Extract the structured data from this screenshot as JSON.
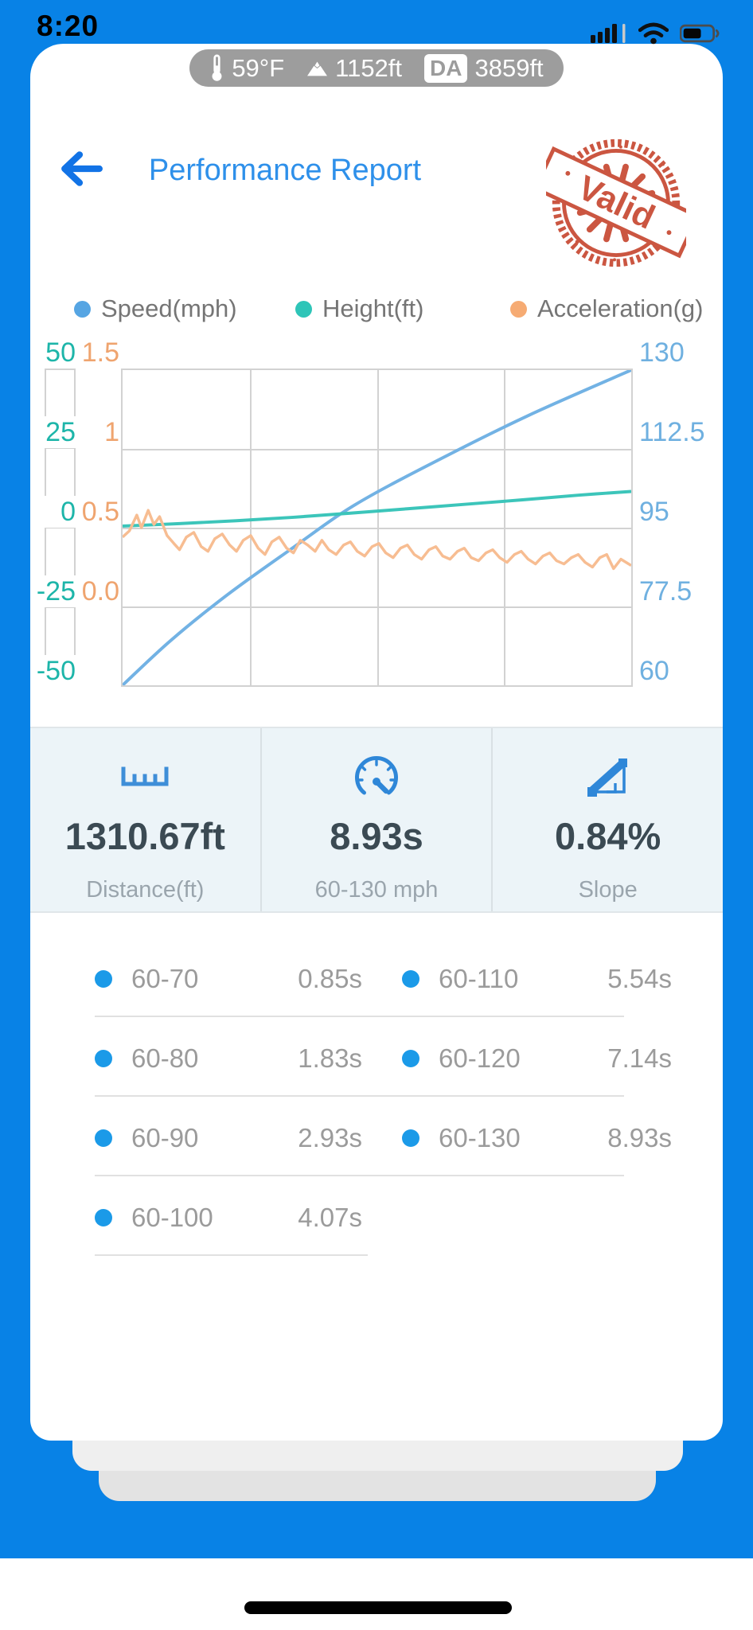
{
  "status_bar": {
    "time": "8:20"
  },
  "env_pill": {
    "temperature": "59°F",
    "altitude": "1152ft",
    "da_label": "DA",
    "density_altitude": "3859ft"
  },
  "header": {
    "back_icon": "arrow-left",
    "title": "Performance Report",
    "stamp_text": "Valid",
    "stamp_color": "#c84a33"
  },
  "legend": [
    {
      "label": "Speed(mph)",
      "color": "#56a5e3"
    },
    {
      "label": "Height(ft)",
      "color": "#2ec5b8"
    },
    {
      "label": "Acceleration(g)",
      "color": "#f6ab73"
    }
  ],
  "chart_data": {
    "type": "line",
    "x": {
      "label": "time",
      "unit": "s",
      "range": [
        0,
        8.93
      ],
      "ticks_visible": false
    },
    "grid": {
      "columns": 4,
      "rows": 4,
      "color": "#d2d2d2"
    },
    "axes": [
      {
        "id": "height",
        "side": "far-left",
        "color": "#1db5a9",
        "range": [
          -50,
          50
        ],
        "ticks": [
          "50",
          "25",
          "0",
          "-25",
          "-50"
        ]
      },
      {
        "id": "acceleration",
        "side": "left",
        "color": "#efa46f",
        "range": [
          -0.5,
          1.5
        ],
        "ticks": [
          "1.5",
          "1",
          "0.5",
          "0.0"
        ]
      },
      {
        "id": "speed",
        "side": "right",
        "color": "#6fb0e0",
        "range": [
          60,
          130
        ],
        "ticks": [
          "130",
          "112.5",
          "95",
          "77.5",
          "60"
        ]
      }
    ],
    "series": [
      {
        "name": "Speed(mph)",
        "axis": "speed",
        "color": "#72b2e4",
        "width": 4,
        "smooth": true,
        "points": [
          [
            0,
            60
          ],
          [
            0.85,
            70
          ],
          [
            1.83,
            80
          ],
          [
            2.93,
            90
          ],
          [
            4.07,
            100
          ],
          [
            5.54,
            110
          ],
          [
            7.14,
            120
          ],
          [
            8.93,
            130
          ]
        ]
      },
      {
        "name": "Height(ft)",
        "axis": "height",
        "color": "#3cc5ba",
        "width": 4,
        "smooth": true,
        "points": [
          [
            0,
            0.5
          ],
          [
            1,
            1.3
          ],
          [
            2,
            2.2
          ],
          [
            3,
            3.3
          ],
          [
            4,
            4.6
          ],
          [
            5,
            6.0
          ],
          [
            6,
            7.4
          ],
          [
            7,
            8.8
          ],
          [
            8,
            10.3
          ],
          [
            8.93,
            11.5
          ]
        ]
      },
      {
        "name": "Acceleration(g)",
        "axis": "acceleration",
        "color": "#f7bd92",
        "width": 3.5,
        "smooth": false,
        "points": [
          [
            0,
            0.44
          ],
          [
            0.12,
            0.48
          ],
          [
            0.25,
            0.58
          ],
          [
            0.33,
            0.5
          ],
          [
            0.45,
            0.61
          ],
          [
            0.55,
            0.52
          ],
          [
            0.65,
            0.57
          ],
          [
            0.78,
            0.45
          ],
          [
            0.9,
            0.4
          ],
          [
            1.0,
            0.36
          ],
          [
            1.12,
            0.44
          ],
          [
            1.25,
            0.47
          ],
          [
            1.38,
            0.38
          ],
          [
            1.5,
            0.35
          ],
          [
            1.62,
            0.43
          ],
          [
            1.75,
            0.46
          ],
          [
            1.88,
            0.39
          ],
          [
            2.0,
            0.35
          ],
          [
            2.12,
            0.42
          ],
          [
            2.25,
            0.45
          ],
          [
            2.38,
            0.37
          ],
          [
            2.5,
            0.33
          ],
          [
            2.62,
            0.41
          ],
          [
            2.75,
            0.44
          ],
          [
            2.88,
            0.37
          ],
          [
            3.0,
            0.34
          ],
          [
            3.12,
            0.42
          ],
          [
            3.25,
            0.39
          ],
          [
            3.38,
            0.35
          ],
          [
            3.5,
            0.42
          ],
          [
            3.62,
            0.36
          ],
          [
            3.75,
            0.33
          ],
          [
            3.88,
            0.39
          ],
          [
            4.0,
            0.41
          ],
          [
            4.12,
            0.35
          ],
          [
            4.25,
            0.32
          ],
          [
            4.38,
            0.38
          ],
          [
            4.5,
            0.4
          ],
          [
            4.62,
            0.34
          ],
          [
            4.75,
            0.31
          ],
          [
            4.88,
            0.37
          ],
          [
            5.0,
            0.39
          ],
          [
            5.12,
            0.33
          ],
          [
            5.25,
            0.3
          ],
          [
            5.38,
            0.36
          ],
          [
            5.5,
            0.38
          ],
          [
            5.62,
            0.32
          ],
          [
            5.75,
            0.3
          ],
          [
            5.88,
            0.35
          ],
          [
            6.0,
            0.37
          ],
          [
            6.12,
            0.31
          ],
          [
            6.25,
            0.29
          ],
          [
            6.38,
            0.34
          ],
          [
            6.5,
            0.36
          ],
          [
            6.62,
            0.31
          ],
          [
            6.75,
            0.28
          ],
          [
            6.88,
            0.33
          ],
          [
            7.0,
            0.35
          ],
          [
            7.12,
            0.3
          ],
          [
            7.25,
            0.27
          ],
          [
            7.38,
            0.32
          ],
          [
            7.5,
            0.34
          ],
          [
            7.62,
            0.29
          ],
          [
            7.75,
            0.27
          ],
          [
            7.88,
            0.31
          ],
          [
            8.0,
            0.33
          ],
          [
            8.12,
            0.28
          ],
          [
            8.25,
            0.25
          ],
          [
            8.38,
            0.31
          ],
          [
            8.5,
            0.33
          ],
          [
            8.62,
            0.24
          ],
          [
            8.75,
            0.3
          ],
          [
            8.93,
            0.26
          ]
        ]
      }
    ]
  },
  "stats": [
    {
      "icon": "ruler-icon",
      "value": "1310.67ft",
      "label": "Distance(ft)"
    },
    {
      "icon": "speedometer-icon",
      "value": "8.93s",
      "label": "60-130 mph"
    },
    {
      "icon": "slope-icon",
      "value": "0.84%",
      "label": "Slope"
    }
  ],
  "splits": {
    "rows": [
      {
        "left": {
          "label": "60-70",
          "value": "0.85s"
        },
        "right": {
          "label": "60-110",
          "value": "5.54s"
        }
      },
      {
        "left": {
          "label": "60-80",
          "value": "1.83s"
        },
        "right": {
          "label": "60-120",
          "value": "7.14s"
        }
      },
      {
        "left": {
          "label": "60-90",
          "value": "2.93s"
        },
        "right": {
          "label": "60-130",
          "value": "8.93s"
        }
      },
      {
        "left": {
          "label": "60-100",
          "value": "4.07s"
        },
        "right": null
      }
    ]
  }
}
